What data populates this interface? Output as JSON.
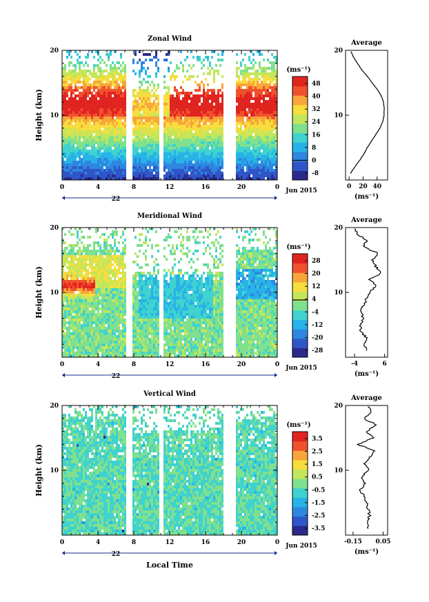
{
  "figure": {
    "xlabel": "Local Time",
    "date_label": "Jun 2015",
    "day_label": "22",
    "unit": "(ms⁻¹)",
    "ylabel": "Height (km)",
    "x_ticks": [
      "0",
      "4",
      "8",
      "12",
      "16",
      "20",
      "0"
    ],
    "y_ticks": [
      "20",
      "10"
    ],
    "avg_title": "Average"
  },
  "panels": [
    {
      "title": "Zonal Wind",
      "colorbar_ticks": [
        "48",
        "40",
        "32",
        "24",
        "16",
        "8",
        "0",
        "-8"
      ],
      "avg_x_ticks": [
        "0",
        "20",
        "40"
      ],
      "colors": [
        "#2b2a8c",
        "#2f56c8",
        "#2e86e0",
        "#27b2e8",
        "#3fd2cf",
        "#7fe08e",
        "#c4e65a",
        "#f7dd3d",
        "#f8a53a",
        "#f0512d",
        "#e02420"
      ]
    },
    {
      "title": "Meridional Wind",
      "colorbar_ticks": [
        "28",
        "20",
        "12",
        "4",
        "-4",
        "-12",
        "-20",
        "-28"
      ],
      "avg_x_ticks": [
        "-4",
        "6"
      ],
      "colors": [
        "#2b2a8c",
        "#2f56c8",
        "#2e86e0",
        "#27b2e8",
        "#3fd2cf",
        "#7fe08e",
        "#c4e65a",
        "#f7dd3d",
        "#f8a53a",
        "#f0512d",
        "#e02420"
      ]
    },
    {
      "title": "Vertical Wind",
      "colorbar_ticks": [
        "3.5",
        "2.5",
        "1.5",
        "0.5",
        "-0.5",
        "-1.5",
        "-2.5",
        "-3.5"
      ],
      "avg_x_ticks": [
        "-0.15",
        "0.05"
      ],
      "colors": [
        "#2b2a8c",
        "#2f56c8",
        "#2e86e0",
        "#27b2e8",
        "#3fd2cf",
        "#7fe08e",
        "#c4e65a",
        "#f7dd3d",
        "#f8a53a",
        "#f0512d",
        "#e02420"
      ]
    }
  ],
  "chart_data": [
    {
      "type": "heatmap",
      "title": "Zonal Wind",
      "xlabel": "",
      "ylabel": "Height (km)",
      "xlim": [
        0,
        24
      ],
      "ylim": [
        0,
        20
      ],
      "colorbar_range": [
        -8,
        48
      ],
      "data_gaps_hours": [
        [
          7.2,
          7.8
        ],
        [
          10.7,
          11.2
        ],
        [
          17.6,
          19.3
        ]
      ],
      "average_profile": {
        "height_km": [
          1,
          2,
          3,
          4,
          5,
          6,
          7,
          8,
          9,
          10,
          11,
          12,
          13,
          14,
          15,
          16,
          17,
          18,
          19,
          20
        ],
        "value_ms": [
          2,
          8,
          15,
          21,
          26,
          32,
          38,
          44,
          48,
          50,
          50,
          49,
          46,
          40,
          33,
          26,
          18,
          12,
          6,
          2
        ],
        "xlim": [
          -5,
          55
        ]
      }
    },
    {
      "type": "heatmap",
      "title": "Meridional Wind",
      "xlabel": "",
      "ylabel": "Height (km)",
      "xlim": [
        0,
        24
      ],
      "ylim": [
        0,
        20
      ],
      "colorbar_range": [
        -28,
        28
      ],
      "average_profile": {
        "height_km": [
          1,
          2,
          3,
          4,
          5,
          6,
          7,
          8,
          9,
          10,
          11,
          12,
          13,
          14,
          15,
          16,
          17,
          18,
          19,
          20
        ],
        "value_ms": [
          0,
          -1,
          0,
          -2,
          -2,
          -1,
          -2,
          -1,
          0,
          1,
          3,
          1,
          5,
          3,
          2,
          4,
          -1,
          0,
          -3,
          -4
        ],
        "xlim": [
          -7,
          7
        ]
      }
    },
    {
      "type": "heatmap",
      "title": "Vertical Wind",
      "xlabel": "Local Time",
      "ylabel": "Height (km)",
      "xlim": [
        0,
        24
      ],
      "ylim": [
        0,
        20
      ],
      "colorbar_range": [
        -3.5,
        3.5
      ],
      "average_profile": {
        "height_km": [
          1,
          2,
          3,
          4,
          5,
          6,
          7,
          8,
          9,
          10,
          11,
          12,
          13,
          14,
          15,
          16,
          17,
          18,
          19,
          20
        ],
        "value_ms": [
          -0.05,
          -0.06,
          -0.04,
          -0.05,
          -0.06,
          -0.08,
          -0.1,
          -0.07,
          -0.09,
          -0.05,
          -0.07,
          -0.04,
          0.0,
          -0.12,
          -0.02,
          -0.06,
          0.01,
          -0.08,
          -0.03,
          -0.05
        ],
        "xlim": [
          -0.2,
          0.08
        ]
      }
    }
  ]
}
